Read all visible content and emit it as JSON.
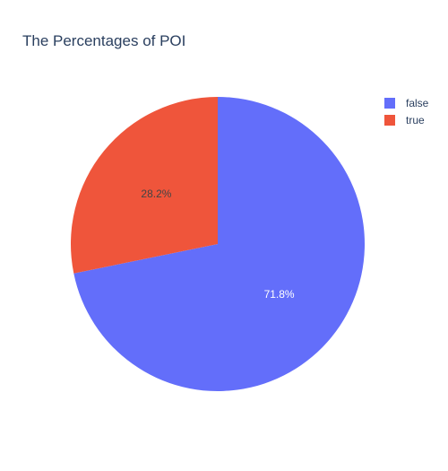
{
  "chart_data": {
    "type": "pie",
    "title": "The Percentages of POI",
    "slices": [
      {
        "label": "false",
        "value": 71.8,
        "text": "71.8%",
        "color": "#636efa",
        "text_color": "#ffffff"
      },
      {
        "label": "true",
        "value": 28.2,
        "text": "28.2%",
        "color": "#ef553b",
        "text_color": "#444444"
      }
    ],
    "legend_position": "top-right",
    "direction": "clockwise",
    "start": "top"
  }
}
